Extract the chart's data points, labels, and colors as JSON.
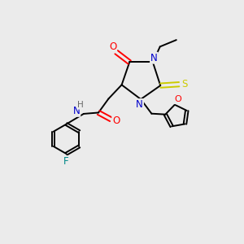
{
  "bg_color": "#ebebeb",
  "atom_colors": {
    "C": "#000000",
    "N": "#0000cc",
    "O": "#ff0000",
    "S": "#cccc00",
    "F": "#008888",
    "H": "#666666"
  }
}
